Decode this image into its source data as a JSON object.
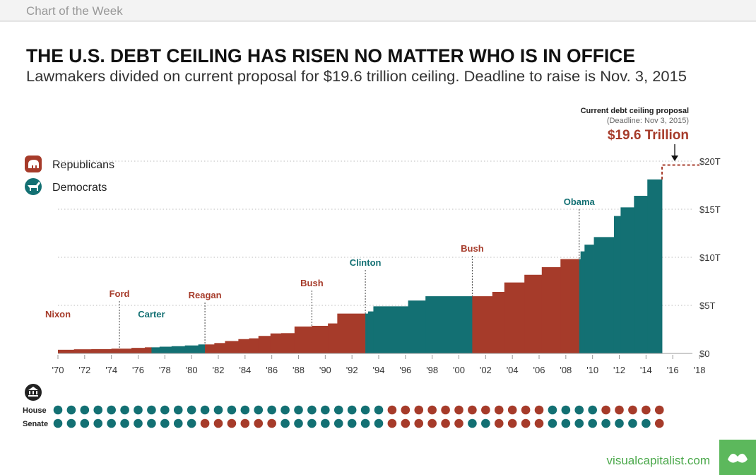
{
  "header": "Chart of the Week",
  "footer": "visualcapitalist.com",
  "chart_data": {
    "type": "step-area",
    "title": "THE U.S. DEBT CEILING HAS RISEN NO MATTER WHO IS IN OFFICE",
    "subtitle": "Lawmakers divided on current proposal for $19.6 trillion ceiling. Deadline to raise is Nov. 3, 2015",
    "parties": [
      {
        "name": "Republicans",
        "color": "#a63b2a"
      },
      {
        "name": "Democrats",
        "color": "#137073"
      }
    ],
    "x": [
      1970,
      1971.2,
      1972.5,
      1974,
      1975.5,
      1976.5,
      1977.6,
      1978.5,
      1979.5,
      1980.5,
      1981.7,
      1982.5,
      1983.5,
      1984.3,
      1985,
      1985.9,
      1986.7,
      1987.7,
      1989,
      1990.2,
      1990.9,
      1993.2,
      1993.6,
      1996.2,
      1997.5,
      2002.5,
      2003.4,
      2004.9,
      2006.2,
      2007.6,
      2009.1,
      2009.4,
      2010.1,
      2011.6,
      2012.1,
      2013.1,
      2014.1
    ],
    "values": [
      0.38,
      0.43,
      0.45,
      0.495,
      0.577,
      0.636,
      0.7,
      0.752,
      0.83,
      0.935,
      1.08,
      1.29,
      1.49,
      1.57,
      1.82,
      2.08,
      2.11,
      2.8,
      2.87,
      3.12,
      4.145,
      4.37,
      4.9,
      5.5,
      5.95,
      6.4,
      7.38,
      8.18,
      8.97,
      9.815,
      10.615,
      11.315,
      12.104,
      14.294,
      15.194,
      16.394,
      18.1
    ],
    "step_end": 2015.2,
    "presidents": [
      {
        "name": "Nixon",
        "party": "Republicans",
        "start": 1970
      },
      {
        "name": "Ford",
        "party": "Republicans",
        "start": 1974.6
      },
      {
        "name": "Carter",
        "party": "Democrats",
        "start": 1977
      },
      {
        "name": "Reagan",
        "party": "Republicans",
        "start": 1981
      },
      {
        "name": "Bush",
        "party": "Republicans",
        "start": 1989
      },
      {
        "name": "Clinton",
        "party": "Democrats",
        "start": 1993
      },
      {
        "name": "Bush",
        "party": "Republicans",
        "start": 2001
      },
      {
        "name": "Obama",
        "party": "Democrats",
        "start": 2009
      }
    ],
    "proposal": {
      "title": "Current debt ceiling proposal",
      "note": "(Deadline: Nov 3, 2015)",
      "label": "$19.6 Trillion",
      "value": 19.6
    },
    "xlim": [
      1970,
      2018
    ],
    "xticks": [
      {
        "value": 1970,
        "label": "'70"
      },
      {
        "value": 1972,
        "label": "'72"
      },
      {
        "value": 1974,
        "label": "'74"
      },
      {
        "value": 1976,
        "label": "'76"
      },
      {
        "value": 1978,
        "label": "'78"
      },
      {
        "value": 1980,
        "label": "'80"
      },
      {
        "value": 1982,
        "label": "'82"
      },
      {
        "value": 1984,
        "label": "'84"
      },
      {
        "value": 1986,
        "label": "'86"
      },
      {
        "value": 1988,
        "label": "'88"
      },
      {
        "value": 1990,
        "label": "'90"
      },
      {
        "value": 1992,
        "label": "'92"
      },
      {
        "value": 1994,
        "label": "'94"
      },
      {
        "value": 1996,
        "label": "'96"
      },
      {
        "value": 1998,
        "label": "'98"
      },
      {
        "value": 2000,
        "label": "'00"
      },
      {
        "value": 2002,
        "label": "'02"
      },
      {
        "value": 2004,
        "label": "'04"
      },
      {
        "value": 2006,
        "label": "'06"
      },
      {
        "value": 2008,
        "label": "'08"
      },
      {
        "value": 2010,
        "label": "'10"
      },
      {
        "value": 2012,
        "label": "'12"
      },
      {
        "value": 2014,
        "label": "'14"
      },
      {
        "value": 2016,
        "label": "'16"
      },
      {
        "value": 2018,
        "label": "'18"
      }
    ],
    "ylim": [
      0,
      20
    ],
    "yticks": [
      {
        "value": 0,
        "label": "$0"
      },
      {
        "value": 5,
        "label": "$5T"
      },
      {
        "value": 10,
        "label": "$10T"
      },
      {
        "value": 15,
        "label": "$15T"
      },
      {
        "value": 20,
        "label": "$20T"
      }
    ],
    "grid": true,
    "congress": {
      "start": 1970,
      "rows": [
        {
          "name": "House",
          "control": [
            "D",
            "D",
            "D",
            "D",
            "D",
            "D",
            "D",
            "D",
            "D",
            "D",
            "D",
            "D",
            "D",
            "D",
            "D",
            "D",
            "D",
            "D",
            "D",
            "D",
            "D",
            "D",
            "D",
            "D",
            "D",
            "R",
            "R",
            "R",
            "R",
            "R",
            "R",
            "R",
            "R",
            "R",
            "R",
            "R",
            "R",
            "D",
            "D",
            "D",
            "D",
            "R",
            "R",
            "R",
            "R",
            "R"
          ]
        },
        {
          "name": "Senate",
          "control": [
            "D",
            "D",
            "D",
            "D",
            "D",
            "D",
            "D",
            "D",
            "D",
            "D",
            "D",
            "R",
            "R",
            "R",
            "R",
            "R",
            "R",
            "D",
            "D",
            "D",
            "D",
            "D",
            "D",
            "D",
            "D",
            "R",
            "R",
            "R",
            "R",
            "R",
            "R",
            "D",
            "D",
            "R",
            "R",
            "R",
            "R",
            "D",
            "D",
            "D",
            "D",
            "D",
            "D",
            "D",
            "D",
            "R"
          ]
        }
      ]
    }
  }
}
